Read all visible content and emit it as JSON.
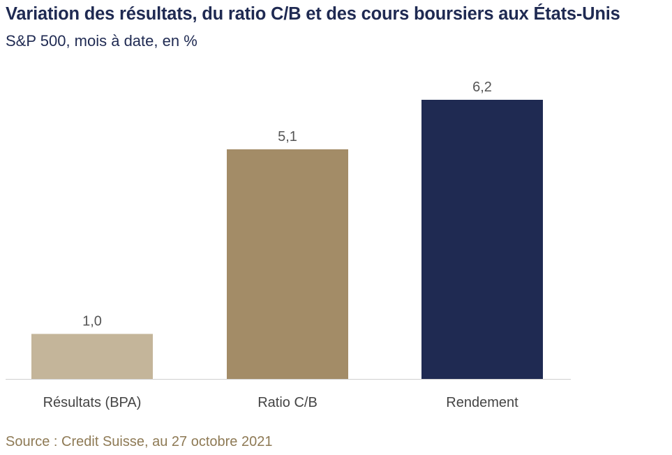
{
  "header": {
    "title": "Variation des résultats, du ratio C/B et des cours boursiers aux États-Unis",
    "subtitle": "S&P 500, mois à date, en %"
  },
  "footer": {
    "source": "Source : Credit Suisse, au 27 octobre 2021"
  },
  "chart_data": {
    "type": "bar",
    "title": "Variation des résultats, du ratio C/B et des cours boursiers aux États-Unis",
    "subtitle": "S&P 500, mois à date, en %",
    "categories": [
      "Résultats (BPA)",
      "Ratio C/B",
      "Rendement"
    ],
    "values": [
      1.0,
      5.1,
      6.2
    ],
    "value_labels": [
      "1,0",
      "5,1",
      "6,2"
    ],
    "colors": [
      "#c4b59a",
      "#a38c67",
      "#1f2a52"
    ],
    "ylim": [
      0,
      6.2
    ],
    "grid": false,
    "legend": "none"
  }
}
